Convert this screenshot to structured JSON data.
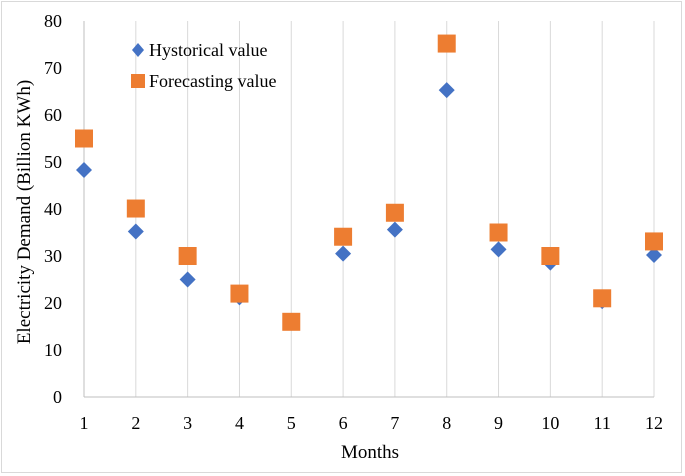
{
  "chart_data": {
    "type": "scatter",
    "title": "",
    "xlabel": "Months",
    "ylabel": "Electricity Demand (Billion KWh)",
    "x": [
      1,
      2,
      3,
      4,
      5,
      6,
      7,
      8,
      9,
      10,
      11,
      12
    ],
    "xlim": [
      1,
      12
    ],
    "ylim": [
      0,
      80
    ],
    "y_ticks": [
      0,
      10,
      20,
      30,
      40,
      50,
      60,
      70,
      80
    ],
    "x_ticks": [
      1,
      2,
      3,
      4,
      5,
      6,
      7,
      8,
      9,
      10,
      11,
      12
    ],
    "grid": "vertical",
    "legend_position": "top-left",
    "series": [
      {
        "name": "Hystorical value",
        "marker": "diamond",
        "color": "#4472C4",
        "values": [
          48.3,
          35.2,
          25.0,
          21.2,
          15.8,
          30.5,
          35.6,
          65.3,
          31.4,
          28.6,
          20.4,
          30.2
        ]
      },
      {
        "name": "Forecasting value",
        "marker": "square",
        "color": "#ED7D31",
        "values": [
          55.0,
          40.1,
          30.0,
          22.0,
          16.0,
          34.1,
          39.2,
          75.2,
          35.0,
          30.0,
          21.0,
          33.1
        ]
      }
    ],
    "axis_color": "#bfbfbf",
    "grid_color": "#d9d9d9"
  }
}
